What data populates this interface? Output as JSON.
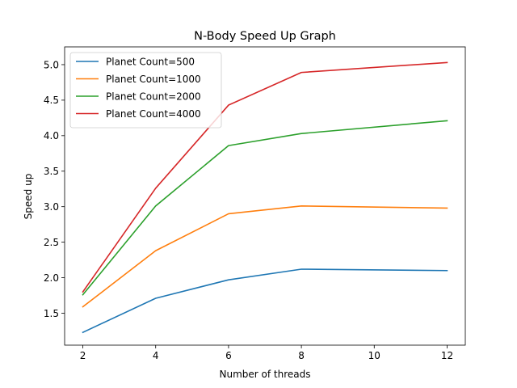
{
  "chart_data": {
    "type": "line",
    "title": "N-Body Speed Up Graph",
    "xlabel": "Number of threads",
    "ylabel": "Speed up",
    "x": [
      2,
      4,
      6,
      8,
      12
    ],
    "xlim": [
      1.5,
      12.5
    ],
    "ylim": [
      1.05,
      5.25
    ],
    "xticks": [
      2,
      4,
      6,
      8,
      10,
      12
    ],
    "yticks": [
      1.5,
      2.0,
      2.5,
      3.0,
      3.5,
      4.0,
      4.5,
      5.0
    ],
    "grid": false,
    "legend_position": "top-left",
    "series": [
      {
        "name": "Planet Count=500",
        "color": "#1f77b4",
        "values": [
          1.23,
          1.71,
          1.97,
          2.12,
          2.1
        ]
      },
      {
        "name": "Planet Count=1000",
        "color": "#ff7f0e",
        "values": [
          1.59,
          2.38,
          2.9,
          3.01,
          2.98
        ]
      },
      {
        "name": "Planet Count=2000",
        "color": "#2ca02c",
        "values": [
          1.76,
          3.01,
          3.86,
          4.03,
          4.21
        ]
      },
      {
        "name": "Planet Count=4000",
        "color": "#d62728",
        "values": [
          1.8,
          3.26,
          4.43,
          4.89,
          5.03
        ]
      }
    ]
  }
}
